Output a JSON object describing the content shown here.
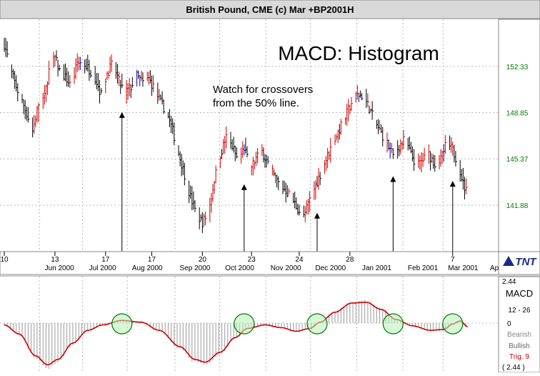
{
  "window": {
    "title": "British Pound, CME (c) Mar +BP2001H"
  },
  "logo": {
    "text": "TNT"
  },
  "colors": {
    "up_bar": "#cc0000",
    "down_bar": "#000000",
    "blue_bar": "#0000cc",
    "y_label": "#007a00",
    "grid": "#b8b8b8",
    "title_bg": "#d9d9d9",
    "macd_line": "#cc0000",
    "histogram": "#9a9a9a",
    "marker_fill": "#b8f0b8",
    "marker_stroke": "#007a00"
  },
  "chart_data": [
    {
      "type": "bar",
      "subtype": "ohlc",
      "title": "MACD: Histogram",
      "annotations": [
        "Watch for crossovers",
        "from the 50% line."
      ],
      "arrow_dates": [
        "2000-07-28",
        "2000-10-18",
        "2000-12-06",
        "2001-01-26",
        "2001-03-07"
      ],
      "y_ticks": [
        "152.33",
        "148.85",
        "145.37",
        "141.88"
      ],
      "y_tick_values": [
        152.33,
        148.85,
        145.37,
        141.88
      ],
      "ylim": [
        138.5,
        155.6
      ],
      "x_range": [
        "2000-05-10",
        "2001-04-02"
      ],
      "x_day_labels": [
        {
          "label": "10",
          "date": "2000-05-10"
        },
        {
          "label": "13",
          "date": "2000-06-13"
        },
        {
          "label": "17",
          "date": "2000-07-17"
        },
        {
          "label": "17",
          "date": "2000-08-17"
        },
        {
          "label": "20",
          "date": "2000-09-20"
        },
        {
          "label": "23",
          "date": "2000-10-23"
        },
        {
          "label": "24",
          "date": "2000-11-24"
        },
        {
          "label": "28",
          "date": "2000-12-28"
        },
        {
          "label": "7",
          "date": "2001-03-07"
        }
      ],
      "x_month_labels": [
        {
          "label": "Jun 2000",
          "date": "2000-06-16"
        },
        {
          "label": "Jul 2000",
          "date": "2000-07-15"
        },
        {
          "label": "Aug 2000",
          "date": "2000-08-14"
        },
        {
          "label": "Sep 2000",
          "date": "2000-09-15"
        },
        {
          "label": "Oct 2000",
          "date": "2000-10-15"
        },
        {
          "label": "Nov 2000",
          "date": "2000-11-15"
        },
        {
          "label": "Dec 2000",
          "date": "2000-12-15"
        },
        {
          "label": "Jan 2001",
          "date": "2001-01-15"
        },
        {
          "label": "Feb 2001",
          "date": "2001-02-15"
        },
        {
          "label": "Mar 2001",
          "date": "2001-03-14"
        },
        {
          "label": "Ap",
          "date": "2001-04-03"
        }
      ],
      "close_points": [
        [
          "2000-05-10",
          154.0
        ],
        [
          "2000-05-15",
          151.8
        ],
        [
          "2000-05-19",
          150.5
        ],
        [
          "2000-05-24",
          149.1
        ],
        [
          "2000-05-29",
          147.5
        ],
        [
          "2000-06-02",
          149.5
        ],
        [
          "2000-06-06",
          150.0
        ],
        [
          "2000-06-09",
          152.0
        ],
        [
          "2000-06-13",
          153.0
        ],
        [
          "2000-06-16",
          152.0
        ],
        [
          "2000-06-20",
          151.5
        ],
        [
          "2000-06-24",
          150.8
        ],
        [
          "2000-06-28",
          152.6
        ],
        [
          "2000-07-02",
          152.6
        ],
        [
          "2000-07-06",
          152.1
        ],
        [
          "2000-07-10",
          151.5
        ],
        [
          "2000-07-14",
          150.2
        ],
        [
          "2000-07-18",
          151.8
        ],
        [
          "2000-07-22",
          152.6
        ],
        [
          "2000-07-26",
          151.2
        ],
        [
          "2000-07-30",
          150.3
        ],
        [
          "2000-08-03",
          150.8
        ],
        [
          "2000-08-07",
          151.6
        ],
        [
          "2000-08-11",
          151.1
        ],
        [
          "2000-08-15",
          151.4
        ],
        [
          "2000-08-19",
          150.6
        ],
        [
          "2000-08-23",
          149.6
        ],
        [
          "2000-08-27",
          148.9
        ],
        [
          "2000-08-31",
          147.5
        ],
        [
          "2000-09-04",
          145.8
        ],
        [
          "2000-09-08",
          144.2
        ],
        [
          "2000-09-12",
          142.5
        ],
        [
          "2000-09-16",
          141.2
        ],
        [
          "2000-09-20",
          140.6
        ],
        [
          "2000-09-24",
          141.3
        ],
        [
          "2000-09-28",
          143.8
        ],
        [
          "2000-10-02",
          145.7
        ],
        [
          "2000-10-06",
          147.0
        ],
        [
          "2000-10-10",
          146.3
        ],
        [
          "2000-10-14",
          145.2
        ],
        [
          "2000-10-18",
          146.2
        ],
        [
          "2000-10-22",
          144.6
        ],
        [
          "2000-10-26",
          145.4
        ],
        [
          "2000-10-30",
          145.9
        ],
        [
          "2000-11-03",
          145.0
        ],
        [
          "2000-11-07",
          144.1
        ],
        [
          "2000-11-11",
          143.4
        ],
        [
          "2000-11-15",
          143.0
        ],
        [
          "2000-11-19",
          142.4
        ],
        [
          "2000-11-23",
          141.6
        ],
        [
          "2000-11-27",
          141.0
        ],
        [
          "2000-12-01",
          142.3
        ],
        [
          "2000-12-05",
          143.4
        ],
        [
          "2000-12-09",
          144.5
        ],
        [
          "2000-12-13",
          145.6
        ],
        [
          "2000-12-17",
          146.7
        ],
        [
          "2000-12-21",
          147.6
        ],
        [
          "2000-12-25",
          148.5
        ],
        [
          "2000-12-29",
          149.6
        ],
        [
          "2001-01-02",
          150.2
        ],
        [
          "2001-01-06",
          150.1
        ],
        [
          "2001-01-10",
          149.2
        ],
        [
          "2001-01-14",
          148.1
        ],
        [
          "2001-01-18",
          147.3
        ],
        [
          "2001-01-22",
          146.5
        ],
        [
          "2001-01-26",
          145.6
        ],
        [
          "2001-01-30",
          146.3
        ],
        [
          "2001-02-03",
          146.9
        ],
        [
          "2001-02-07",
          145.7
        ],
        [
          "2001-02-11",
          144.8
        ],
        [
          "2001-02-15",
          145.3
        ],
        [
          "2001-02-19",
          145.7
        ],
        [
          "2001-02-23",
          145.0
        ],
        [
          "2001-02-27",
          145.3
        ],
        [
          "2001-03-03",
          146.6
        ],
        [
          "2001-03-07",
          146.0
        ],
        [
          "2001-03-11",
          145.0
        ],
        [
          "2001-03-14",
          143.5
        ],
        [
          "2001-03-17",
          142.7
        ]
      ]
    },
    {
      "type": "area",
      "title": "MACD",
      "params": "12 - 26",
      "labels": [
        "Bearish",
        "Bullish"
      ],
      "trigger": "Trig. 9",
      "y_top_label": "2.44",
      "y_zero_label": "0",
      "y_bottom_label": "( 2.44 )",
      "ylim": [
        -2.44,
        2.44
      ],
      "signal_points": [
        [
          "2000-05-10",
          -0.1
        ],
        [
          "2000-05-20",
          -0.6
        ],
        [
          "2000-05-31",
          -1.8
        ],
        [
          "2000-06-08",
          -2.3
        ],
        [
          "2000-06-15",
          -2.0
        ],
        [
          "2000-06-25",
          -1.1
        ],
        [
          "2000-07-05",
          -0.4
        ],
        [
          "2000-07-15",
          -0.1
        ],
        [
          "2000-07-28",
          0.15
        ],
        [
          "2000-08-10",
          0.05
        ],
        [
          "2000-08-22",
          -0.4
        ],
        [
          "2000-09-05",
          -1.3
        ],
        [
          "2000-09-15",
          -2.0
        ],
        [
          "2000-09-22",
          -2.15
        ],
        [
          "2000-10-02",
          -1.6
        ],
        [
          "2000-10-12",
          -0.8
        ],
        [
          "2000-10-20",
          -0.3
        ],
        [
          "2000-11-01",
          -0.1
        ],
        [
          "2000-11-12",
          -0.25
        ],
        [
          "2000-11-22",
          -0.45
        ],
        [
          "2000-12-01",
          -0.3
        ],
        [
          "2000-12-08",
          0.05
        ],
        [
          "2000-12-18",
          0.6
        ],
        [
          "2000-12-29",
          1.1
        ],
        [
          "2001-01-08",
          1.15
        ],
        [
          "2001-01-18",
          0.75
        ],
        [
          "2001-01-28",
          0.2
        ],
        [
          "2001-02-08",
          -0.15
        ],
        [
          "2001-02-20",
          -0.4
        ],
        [
          "2001-03-01",
          -0.35
        ],
        [
          "2001-03-07",
          -0.05
        ],
        [
          "2001-03-12",
          0.12
        ],
        [
          "2001-03-17",
          -0.2
        ]
      ]
    }
  ]
}
